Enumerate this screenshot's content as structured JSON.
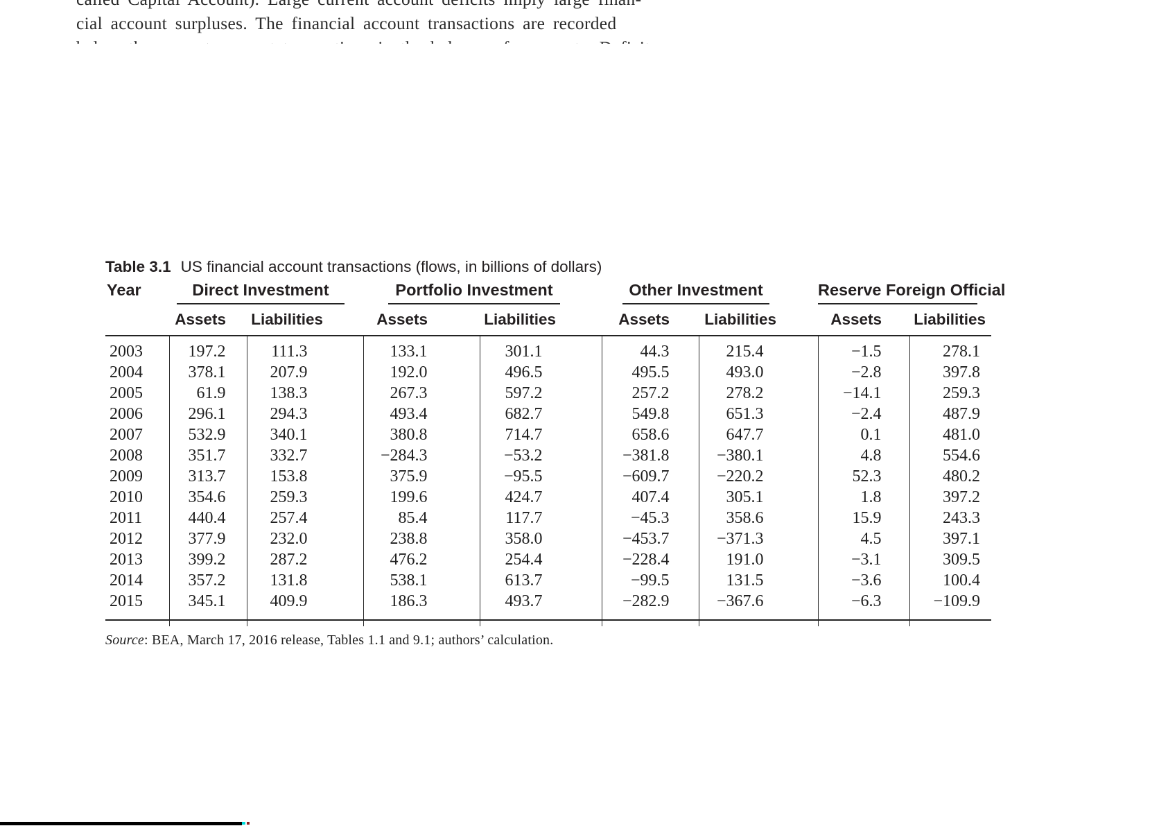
{
  "paragraph_top": {
    "line1": "called Capital Account). Large current account deficits imply large finan-",
    "line2": "cial account surpluses. The financial account transactions are recorded",
    "line3_partial": "below the current account transactions in the balance of payments. Deficits"
  },
  "table": {
    "label": "Table 3.1",
    "title": "US financial account transactions (flows, in billions of dollars)",
    "year_header": "Year",
    "groups": [
      {
        "label": "Direct Investment"
      },
      {
        "label": "Portfolio Investment"
      },
      {
        "label": "Other Investment"
      },
      {
        "label": "Reserve Foreign Official"
      }
    ],
    "subheaders": [
      "Assets",
      "Liabilities",
      "Assets",
      "Liabilities",
      "Assets",
      "Liabilities",
      "Assets",
      "Liabilities"
    ],
    "rows": [
      {
        "year": "2003",
        "values": [
          "197.2",
          "111.3",
          "133.1",
          "301.1",
          "44.3",
          "215.4",
          "−1.5",
          "278.1"
        ]
      },
      {
        "year": "2004",
        "values": [
          "378.1",
          "207.9",
          "192.0",
          "496.5",
          "495.5",
          "493.0",
          "−2.8",
          "397.8"
        ]
      },
      {
        "year": "2005",
        "values": [
          "61.9",
          "138.3",
          "267.3",
          "597.2",
          "257.2",
          "278.2",
          "−14.1",
          "259.3"
        ]
      },
      {
        "year": "2006",
        "values": [
          "296.1",
          "294.3",
          "493.4",
          "682.7",
          "549.8",
          "651.3",
          "−2.4",
          "487.9"
        ]
      },
      {
        "year": "2007",
        "values": [
          "532.9",
          "340.1",
          "380.8",
          "714.7",
          "658.6",
          "647.7",
          "0.1",
          "481.0"
        ]
      },
      {
        "year": "2008",
        "values": [
          "351.7",
          "332.7",
          "−284.3",
          "−53.2",
          "−381.8",
          "−380.1",
          "4.8",
          "554.6"
        ]
      },
      {
        "year": "2009",
        "values": [
          "313.7",
          "153.8",
          "375.9",
          "−95.5",
          "−609.7",
          "−220.2",
          "52.3",
          "480.2"
        ]
      },
      {
        "year": "2010",
        "values": [
          "354.6",
          "259.3",
          "199.6",
          "424.7",
          "407.4",
          "305.1",
          "1.8",
          "397.2"
        ]
      },
      {
        "year": "2011",
        "values": [
          "440.4",
          "257.4",
          "85.4",
          "117.7",
          "−45.3",
          "358.6",
          "15.9",
          "243.3"
        ]
      },
      {
        "year": "2012",
        "values": [
          "377.9",
          "232.0",
          "238.8",
          "358.0",
          "−453.7",
          "−371.3",
          "4.5",
          "397.1"
        ]
      },
      {
        "year": "2013",
        "values": [
          "399.2",
          "287.2",
          "476.2",
          "254.4",
          "−228.4",
          "191.0",
          "−3.1",
          "309.5"
        ]
      },
      {
        "year": "2014",
        "values": [
          "357.2",
          "131.8",
          "538.1",
          "613.7",
          "−99.5",
          "131.5",
          "−3.6",
          "100.4"
        ]
      },
      {
        "year": "2015",
        "values": [
          "345.1",
          "409.9",
          "186.3",
          "493.7",
          "−282.9",
          "−367.6",
          "−6.3",
          "−109.9"
        ]
      }
    ],
    "source_label": "Source",
    "source_text": ": BEA, March 17, 2016 release, Tables 1.1 and 9.1; authors’ calculation."
  },
  "colors": {
    "text": "#231f20",
    "rule": "#232323",
    "bottom_bar": "#000000",
    "speck_cyan": "#00dcdc",
    "speck_red": "#8b2020"
  }
}
